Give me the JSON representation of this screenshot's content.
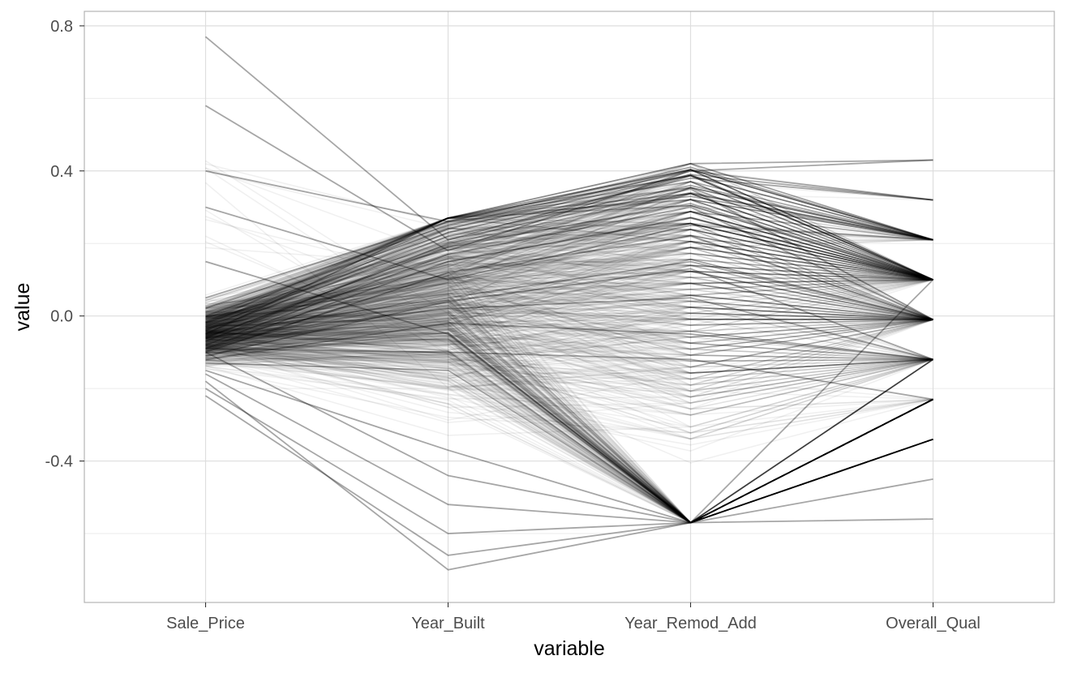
{
  "chart_data": {
    "type": "parallel_coordinates",
    "title": "",
    "xlabel": "variable",
    "ylabel": "value",
    "categories": [
      "Sale_Price",
      "Year_Built",
      "Year_Remod_Add",
      "Overall_Qual"
    ],
    "ylim": [
      -0.79,
      0.84
    ],
    "y_ticks": [
      0.8,
      0.4,
      0.0,
      -0.4
    ],
    "y_tick_labels": [
      "0.8",
      "0.4",
      "0.0",
      "-0.4"
    ],
    "grid": true,
    "line_color": "#000000",
    "line_alpha": 0.06,
    "overall_qual_levels": [
      0.43,
      0.32,
      0.21,
      0.1,
      -0.01,
      -0.12,
      -0.23,
      -0.34,
      -0.45,
      -0.56
    ],
    "year_remod_range": [
      -0.57,
      0.42
    ],
    "year_built_range": [
      -0.72,
      0.27
    ],
    "sale_price_range": [
      -0.23,
      0.77
    ],
    "series": [
      {
        "values": [
          -0.05,
          0.27,
          0.42,
          0.43
        ]
      },
      {
        "values": [
          0.02,
          0.25,
          0.4,
          0.32
        ]
      },
      {
        "values": [
          -0.02,
          0.23,
          0.38,
          0.32
        ]
      },
      {
        "values": [
          0.05,
          0.26,
          0.41,
          0.21
        ]
      },
      {
        "values": [
          -0.03,
          0.22,
          0.36,
          0.21
        ]
      },
      {
        "values": [
          -0.07,
          0.2,
          0.34,
          0.21
        ]
      },
      {
        "values": [
          0.0,
          0.24,
          0.39,
          0.1
        ]
      },
      {
        "values": [
          -0.06,
          0.19,
          0.31,
          0.1
        ]
      },
      {
        "values": [
          -0.09,
          0.15,
          0.27,
          0.1
        ]
      },
      {
        "values": [
          -0.04,
          0.21,
          0.35,
          -0.01
        ]
      },
      {
        "values": [
          -0.08,
          0.17,
          0.3,
          -0.01
        ]
      },
      {
        "values": [
          -0.1,
          0.12,
          0.22,
          -0.01
        ]
      },
      {
        "values": [
          -0.11,
          0.04,
          0.13,
          -0.12
        ]
      },
      {
        "values": [
          -0.06,
          0.02,
          0.05,
          -0.12
        ]
      },
      {
        "values": [
          -0.12,
          -0.02,
          -0.05,
          -0.12
        ]
      },
      {
        "values": [
          -0.09,
          -0.1,
          -0.12,
          -0.23
        ]
      },
      {
        "values": [
          -0.13,
          -0.15,
          -0.57,
          -0.23
        ]
      },
      {
        "values": [
          -0.15,
          -0.37,
          -0.57,
          -0.34
        ]
      },
      {
        "values": [
          -0.1,
          -0.44,
          -0.57,
          0.1
        ]
      },
      {
        "values": [
          -0.16,
          -0.52,
          -0.57,
          -0.45
        ]
      },
      {
        "values": [
          0.58,
          0.18,
          0.4,
          0.43
        ]
      },
      {
        "values": [
          0.77,
          0.21,
          0.39,
          0.32
        ]
      },
      {
        "values": [
          0.4,
          0.26,
          0.33,
          0.21
        ]
      },
      {
        "values": [
          0.3,
          0.1,
          0.25,
          0.21
        ]
      },
      {
        "values": [
          -0.2,
          -0.6,
          -0.57,
          -0.23
        ]
      },
      {
        "values": [
          -0.22,
          -0.66,
          -0.57,
          -0.56
        ]
      },
      {
        "values": [
          -0.18,
          -0.7,
          -0.57,
          -0.34
        ]
      },
      {
        "values": [
          0.15,
          -0.05,
          -0.57,
          -0.12
        ]
      },
      {
        "values": [
          -0.05,
          0.05,
          0.15,
          -0.01
        ]
      }
    ]
  }
}
